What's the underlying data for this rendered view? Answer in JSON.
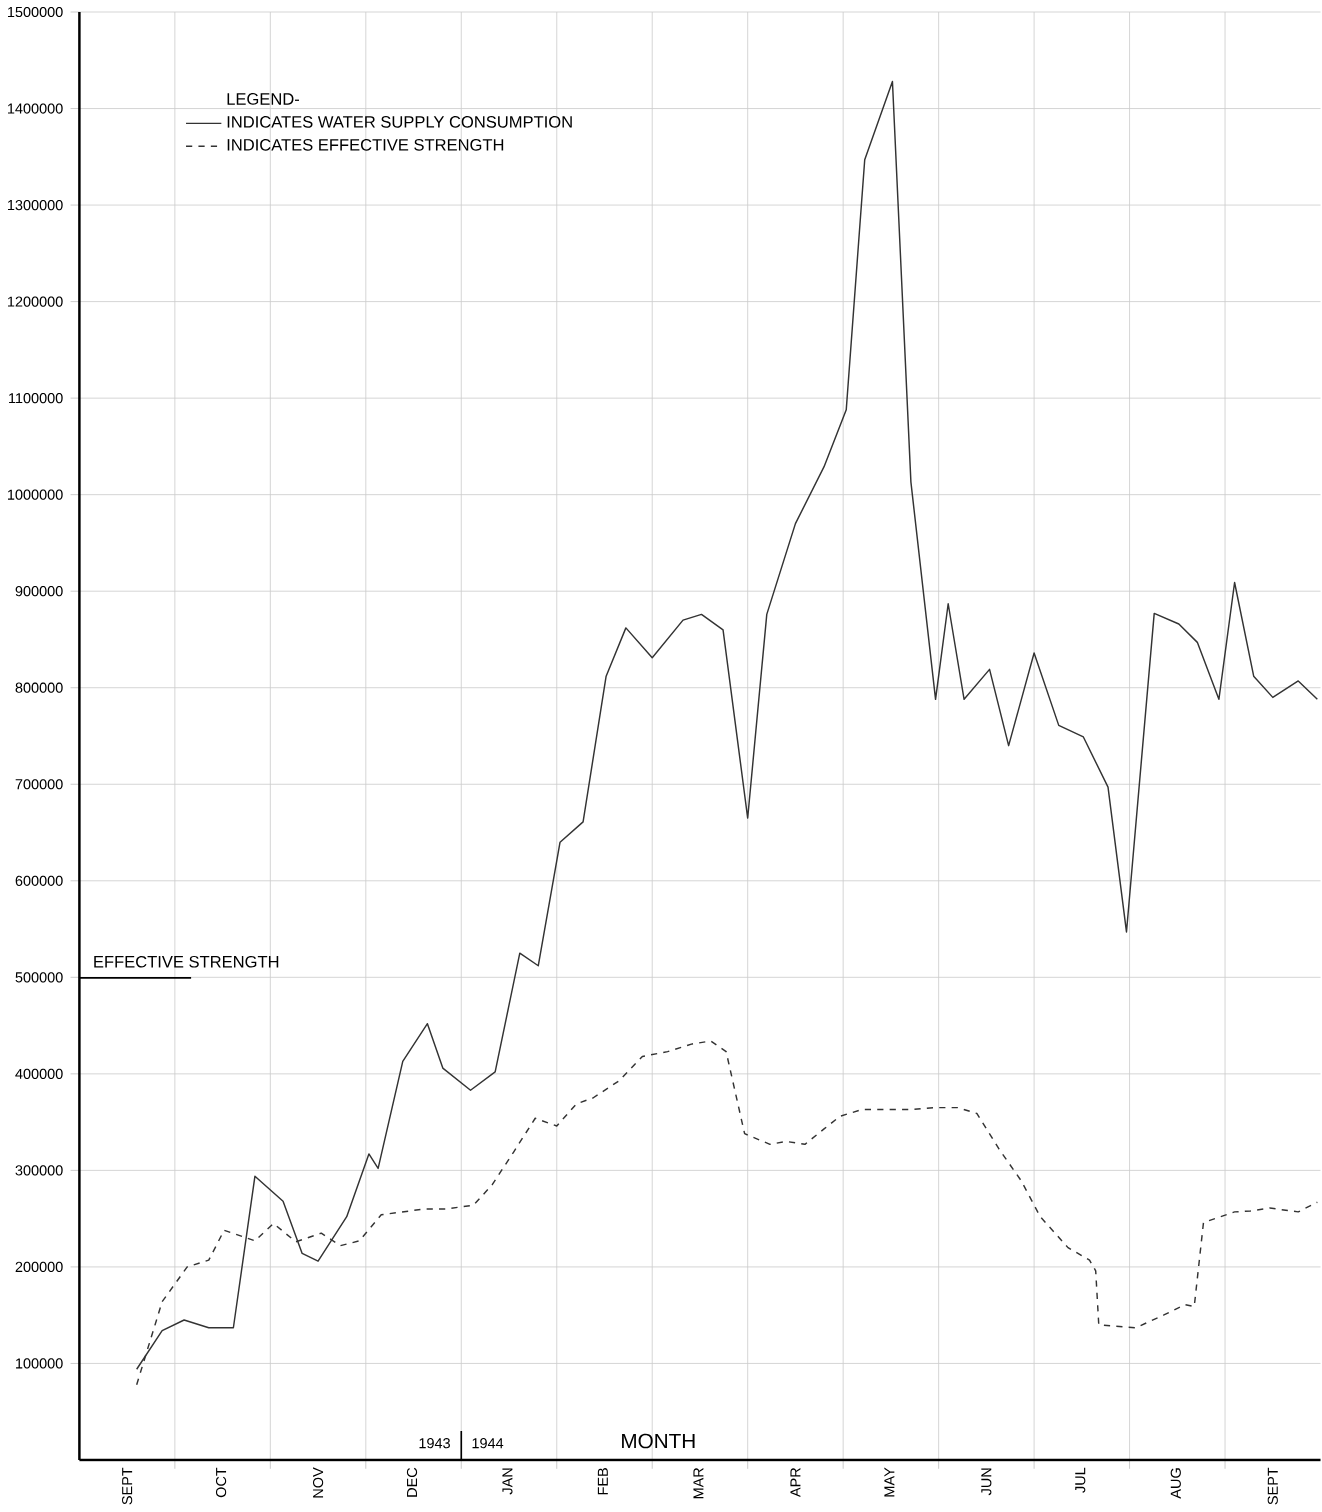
{
  "chart_data": {
    "type": "line",
    "xlabel": "MONTH",
    "ylabel": "EFFECTIVE STRENGTH",
    "legend_title": "LEGEND-",
    "legend": "top left",
    "grid": true,
    "xlim": [
      "1943-09-01",
      "1944-10-01"
    ],
    "ylim": [
      0,
      1500000
    ],
    "xticks": [
      {
        "value": "1943-09-16",
        "label": "SEPT"
      },
      {
        "value": "1943-10-16",
        "label": "OCT"
      },
      {
        "value": "1943-11-16",
        "label": "NOV"
      },
      {
        "value": "1943-12-16",
        "label": "DEC"
      },
      {
        "value": "1944-01-16",
        "label": "JAN"
      },
      {
        "value": "1944-02-15",
        "label": "FEB"
      },
      {
        "value": "1944-03-16",
        "label": "MAR"
      },
      {
        "value": "1944-04-16",
        "label": "APR"
      },
      {
        "value": "1944-05-16",
        "label": "MAY"
      },
      {
        "value": "1944-06-16",
        "label": "JUN"
      },
      {
        "value": "1944-07-16",
        "label": "JUL"
      },
      {
        "value": "1944-08-16",
        "label": "AUG"
      },
      {
        "value": "1944-09-16",
        "label": "SEPT"
      },
      {
        "value": "1943-10-01",
        "label": null
      },
      {
        "value": "1943-11-01",
        "label": null
      },
      {
        "value": "1943-12-01",
        "label": null
      },
      {
        "value": "1944-01-01",
        "label": null
      },
      {
        "value": "1944-02-01",
        "label": null
      },
      {
        "value": "1944-03-01",
        "label": null
      },
      {
        "value": "1944-04-01",
        "label": null
      },
      {
        "value": "1944-05-01",
        "label": null
      },
      {
        "value": "1944-06-01",
        "label": null
      },
      {
        "value": "1944-07-01",
        "label": null
      },
      {
        "value": "1944-08-01",
        "label": null
      },
      {
        "value": "1944-09-01",
        "label": null
      }
    ],
    "yticks": [
      100000,
      200000,
      300000,
      400000,
      500000,
      600000,
      700000,
      800000,
      900000,
      1000000,
      1100000,
      1200000,
      1300000,
      1400000,
      1500000
    ],
    "annotations": [
      "1943",
      "1944"
    ],
    "series": [
      {
        "name": "INDICATES WATER SUPPLY CONSUMPTION",
        "color": "#333333",
        "line_style": "solid",
        "x": [
          "1943-09-19",
          "1943-09-27",
          "1943-10-04",
          "1943-10-12",
          "1943-10-20",
          "1943-10-27",
          "1943-11-05",
          "1943-11-11",
          "1943-11-16",
          "1943-11-25",
          "1943-12-02",
          "1943-12-05",
          "1943-12-13",
          "1943-12-21",
          "1943-12-26",
          "1944-01-04",
          "1944-01-12",
          "1944-01-20",
          "1944-01-26",
          "1944-02-02",
          "1944-02-09",
          "1944-02-16",
          "1944-02-22",
          "1944-03-01",
          "1944-03-11",
          "1944-03-17",
          "1944-03-24",
          "1944-04-01",
          "1944-04-07",
          "1944-04-16",
          "1944-04-25",
          "1944-05-02",
          "1944-05-08",
          "1944-05-17",
          "1944-05-23",
          "1944-05-31",
          "1944-06-04",
          "1944-06-09",
          "1944-06-17",
          "1944-06-23",
          "1944-07-01",
          "1944-07-09",
          "1944-07-17",
          "1944-07-25",
          "1944-07-31",
          "1944-08-09",
          "1944-08-17",
          "1944-08-23",
          "1944-08-30",
          "1944-09-04",
          "1944-09-10",
          "1944-09-16",
          "1944-09-24",
          "1944-09-30"
        ],
        "values": [
          94000,
          134000,
          145000,
          137000,
          137000,
          294000,
          268000,
          214000,
          206000,
          252000,
          317000,
          302000,
          413000,
          452000,
          406000,
          383000,
          402000,
          525000,
          512000,
          640000,
          661000,
          812000,
          862000,
          831000,
          870000,
          876000,
          860000,
          665000,
          876000,
          970000,
          1029000,
          1088000,
          1347000,
          1428000,
          1013000,
          788000,
          887000,
          788000,
          819000,
          740000,
          836000,
          761000,
          749000,
          697000,
          547000,
          877000,
          866000,
          847000,
          788000,
          909000,
          812000,
          790000,
          807000,
          788000
        ]
      },
      {
        "name": "INDICATES EFFECTIVE STRENGTH",
        "color": "#333333",
        "line_style": "dashed",
        "x": [
          "1943-09-19",
          "1943-09-27",
          "1943-10-05",
          "1943-10-12",
          "1943-10-17",
          "1943-10-27",
          "1943-11-02",
          "1943-11-09",
          "1943-11-17",
          "1943-11-23",
          "1943-11-29",
          "1943-12-06",
          "1943-12-20",
          "1943-12-27",
          "1944-01-05",
          "1944-01-11",
          "1944-01-18",
          "1944-01-25",
          "1944-02-01",
          "1944-02-07",
          "1944-02-12",
          "1944-02-20",
          "1944-02-27",
          "1944-03-06",
          "1944-03-14",
          "1944-03-20",
          "1944-03-25",
          "1944-03-31",
          "1944-04-08",
          "1944-04-13",
          "1944-04-19",
          "1944-04-25",
          "1944-04-30",
          "1944-05-07",
          "1944-05-15",
          "1944-05-23",
          "1944-05-31",
          "1944-06-07",
          "1944-06-13",
          "1944-06-20",
          "1944-06-27",
          "1944-07-03",
          "1944-07-12",
          "1944-07-19",
          "1944-07-21",
          "1944-07-22",
          "1944-08-03",
          "1944-08-12",
          "1944-08-19",
          "1944-08-22",
          "1944-08-25",
          "1944-09-04",
          "1944-09-09",
          "1944-09-15",
          "1944-09-24",
          "1944-09-30"
        ],
        "values": [
          78000,
          164000,
          200000,
          207000,
          238000,
          227000,
          245000,
          226000,
          235000,
          222000,
          227000,
          254000,
          260000,
          260000,
          264000,
          285000,
          319000,
          354000,
          346000,
          369000,
          375000,
          393000,
          418000,
          423000,
          431000,
          434000,
          423000,
          338000,
          327000,
          330000,
          327000,
          343000,
          356000,
          363000,
          363000,
          363000,
          365000,
          365000,
          359000,
          322000,
          289000,
          252000,
          220000,
          207000,
          196000,
          140000,
          137000,
          150000,
          161000,
          159000,
          246000,
          257000,
          258000,
          261000,
          257000,
          267000
        ]
      }
    ]
  }
}
